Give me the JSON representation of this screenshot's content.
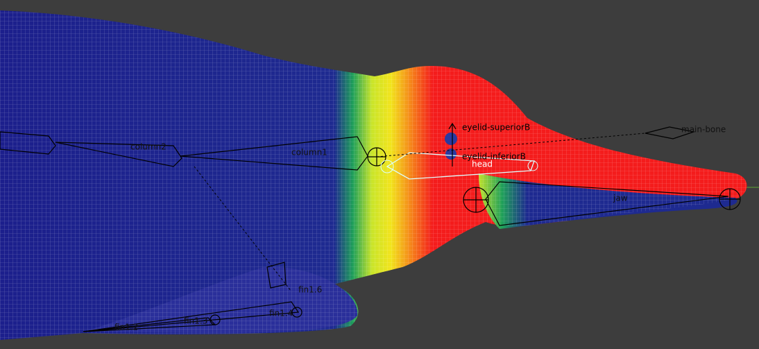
{
  "viewport": {
    "bones": [
      {
        "label": "eyelid-superiorB"
      },
      {
        "label": "eyelid-inferiorB"
      },
      {
        "label": "main-bone"
      },
      {
        "label": "head"
      },
      {
        "label": "jaw"
      },
      {
        "label": "column2"
      },
      {
        "label": "column1"
      },
      {
        "label": "fin1.6"
      },
      {
        "label": "fin1.4"
      },
      {
        "label": "fin1.3"
      },
      {
        "label": "fin1.2"
      }
    ]
  }
}
